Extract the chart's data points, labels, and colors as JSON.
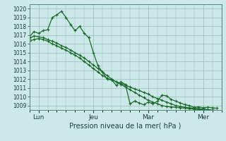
{
  "bg_color": "#cce8e8",
  "grid_color": "#99bbbb",
  "line_color": "#1a6b2a",
  "xlabel": "Pression niveau de la mer( hPa )",
  "ylim": [
    1008.5,
    1020.5
  ],
  "yticks": [
    1009,
    1010,
    1011,
    1012,
    1013,
    1014,
    1015,
    1016,
    1017,
    1018,
    1019,
    1020
  ],
  "xtick_labels": [
    "Lun",
    "Jeu",
    "Mar",
    "Mer"
  ],
  "xtick_positions": [
    2,
    14,
    26,
    38
  ],
  "xlim": [
    0,
    42
  ],
  "n_minor_x": 6,
  "series1": [
    1016.8,
    1017.4,
    1017.2,
    1017.5,
    1017.6,
    1019.0,
    1019.3,
    1019.7,
    1019.0,
    1018.2,
    1017.5,
    1018.0,
    1017.2,
    1016.7,
    1015.0,
    1013.5,
    1012.8,
    1012.0,
    1011.9,
    1011.3,
    1011.7,
    1011.4,
    1009.2,
    1009.5,
    1009.3,
    1009.1,
    1009.4,
    1009.2,
    1009.5,
    1010.2,
    1010.1,
    1009.7,
    1009.5,
    1009.3,
    1009.1,
    1009.0,
    1008.8,
    1008.85,
    1008.75,
    1008.8,
    1008.75,
    1008.7
  ],
  "series2": [
    1016.3,
    1016.5,
    1016.6,
    1016.5,
    1016.3,
    1016.0,
    1015.8,
    1015.5,
    1015.3,
    1015.0,
    1014.7,
    1014.4,
    1014.0,
    1013.6,
    1013.2,
    1012.8,
    1012.4,
    1012.1,
    1011.9,
    1011.7,
    1011.5,
    1011.3,
    1011.1,
    1010.9,
    1010.7,
    1010.5,
    1010.3,
    1010.0,
    1009.8,
    1009.6,
    1009.4,
    1009.2,
    1009.0,
    1008.9,
    1008.8,
    1008.75,
    1008.7,
    1008.65,
    1008.6,
    1008.55,
    1008.5,
    1008.45
  ],
  "series3": [
    1016.6,
    1016.9,
    1016.8,
    1016.7,
    1016.5,
    1016.3,
    1016.1,
    1015.8,
    1015.6,
    1015.3,
    1015.0,
    1014.7,
    1014.4,
    1014.0,
    1013.6,
    1013.2,
    1012.8,
    1012.4,
    1012.0,
    1011.7,
    1011.4,
    1011.1,
    1010.8,
    1010.5,
    1010.2,
    1009.9,
    1009.6,
    1009.4,
    1009.2,
    1009.0,
    1008.9,
    1008.85,
    1008.8,
    1008.75,
    1008.7,
    1008.65,
    1008.6,
    1008.55,
    1008.5,
    1008.45,
    1008.4,
    1008.35
  ]
}
